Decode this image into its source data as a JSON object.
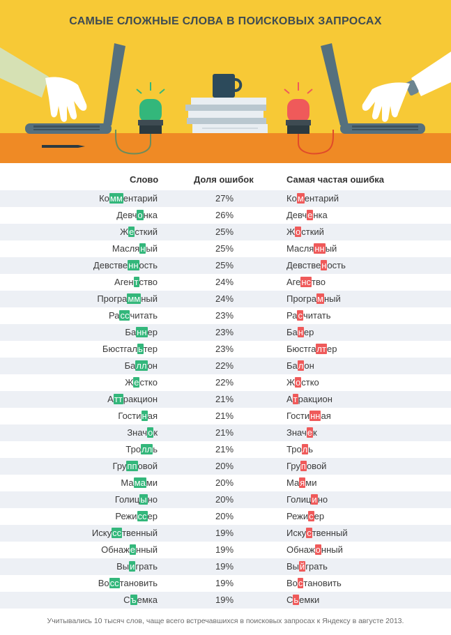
{
  "title": "САМЫЕ СЛОЖНЫЕ СЛОВА В ПОИСКОВЫХ ЗАПРОСАХ",
  "colors": {
    "background_top": "#f7c936",
    "desk": "#ef8a25",
    "correct_highlight": "#33b77b",
    "error_highlight": "#ef5a5a",
    "row_shade": "#edf0f5"
  },
  "illustration": {
    "icons": [
      "hand-icon",
      "laptop-icon",
      "green-lamp-icon",
      "mug-icon",
      "books-icon",
      "red-lamp-icon",
      "pencil-icon",
      "watch-icon"
    ]
  },
  "headers": {
    "word": "Слово",
    "share": "Доля ошибок",
    "mistake": "Самая частая ошибка"
  },
  "rows": [
    {
      "word": [
        "Ко",
        "мм",
        "ентарий"
      ],
      "share": "27%",
      "mistake": [
        "Ко",
        "м",
        "ентарий"
      ]
    },
    {
      "word": [
        "Девч",
        "о",
        "нка"
      ],
      "share": "26%",
      "mistake": [
        "Девч",
        "е",
        "нка"
      ]
    },
    {
      "word": [
        "Ж",
        "е",
        "сткий"
      ],
      "share": "25%",
      "mistake": [
        "Ж",
        "о",
        "сткий"
      ]
    },
    {
      "word": [
        "Масля",
        "н",
        "ый"
      ],
      "share": "25%",
      "mistake": [
        "Масля",
        "нн",
        "ый"
      ]
    },
    {
      "word": [
        "Девстве",
        "нн",
        "ость"
      ],
      "share": "25%",
      "mistake": [
        "Девстве",
        "н",
        "ость"
      ]
    },
    {
      "word": [
        "Аген",
        "т",
        "ство"
      ],
      "share": "24%",
      "mistake": [
        "Аге",
        "нс",
        "тво"
      ]
    },
    {
      "word": [
        "Програ",
        "мм",
        "ный"
      ],
      "share": "24%",
      "mistake": [
        "Програ",
        "м",
        "ный"
      ]
    },
    {
      "word": [
        "Ра",
        "сс",
        "читать"
      ],
      "share": "23%",
      "mistake": [
        "Ра",
        "с",
        "читать"
      ]
    },
    {
      "word": [
        "Ба",
        "нн",
        "ер"
      ],
      "share": "23%",
      "mistake": [
        "Ба",
        "н",
        "ер"
      ]
    },
    {
      "word": [
        "Бюстгал",
        "ь",
        "тер"
      ],
      "share": "23%",
      "mistake": [
        "Бюстга",
        "лт",
        "ер"
      ]
    },
    {
      "word": [
        "Ба",
        "лл",
        "он"
      ],
      "share": "22%",
      "mistake": [
        "Ба",
        "л",
        "он"
      ]
    },
    {
      "word": [
        "Ж",
        "е",
        "стко"
      ],
      "share": "22%",
      "mistake": [
        "Ж",
        "о",
        "стко"
      ]
    },
    {
      "word": [
        "А",
        "тт",
        "ракцион"
      ],
      "share": "21%",
      "mistake": [
        "А",
        "т",
        "ракцион"
      ]
    },
    {
      "word": [
        "Гости",
        "н",
        "ая"
      ],
      "share": "21%",
      "mistake": [
        "Гости",
        "нн",
        "ая"
      ]
    },
    {
      "word": [
        "Знач",
        "о",
        "к"
      ],
      "share": "21%",
      "mistake": [
        "Знач",
        "е",
        "к"
      ]
    },
    {
      "word": [
        "Тро",
        "лл",
        "ь"
      ],
      "share": "21%",
      "mistake": [
        "Тро",
        "л",
        "ь"
      ]
    },
    {
      "word": [
        "Гру",
        "пп",
        "овой"
      ],
      "share": "20%",
      "mistake": [
        "Гру",
        "п",
        "овой"
      ]
    },
    {
      "word": [
        "Ма",
        "ма",
        "ми"
      ],
      "share": "20%",
      "mistake": [
        "Ма",
        "я",
        "ми"
      ]
    },
    {
      "word": [
        "Голиц",
        "ы",
        "но"
      ],
      "share": "20%",
      "mistake": [
        "Голиц",
        "и",
        "но"
      ]
    },
    {
      "word": [
        "Режи",
        "сс",
        "ер"
      ],
      "share": "20%",
      "mistake": [
        "Режи",
        "с",
        "ер"
      ]
    },
    {
      "word": [
        "Иску",
        "сс",
        "твенный"
      ],
      "share": "19%",
      "mistake": [
        "Иску",
        "с",
        "твенный"
      ]
    },
    {
      "word": [
        "Обнаж",
        "е",
        "нный"
      ],
      "share": "19%",
      "mistake": [
        "Обнаж",
        "о",
        "нный"
      ]
    },
    {
      "word": [
        "Вы",
        "и",
        "грать"
      ],
      "share": "19%",
      "mistake": [
        "Вы",
        "й",
        "грать"
      ]
    },
    {
      "word": [
        "Во",
        "сс",
        "тановить"
      ],
      "share": "19%",
      "mistake": [
        "Во",
        "с",
        "тановить"
      ]
    },
    {
      "word": [
        "С",
        "ъ",
        "емка"
      ],
      "share": "19%",
      "mistake": [
        "С",
        "ь",
        "емки"
      ]
    }
  ],
  "footnote": "Учитывались 10 тысяч слов, чаще всего встречавшихся в поисковых запросах к Яндексу в августе 2013."
}
